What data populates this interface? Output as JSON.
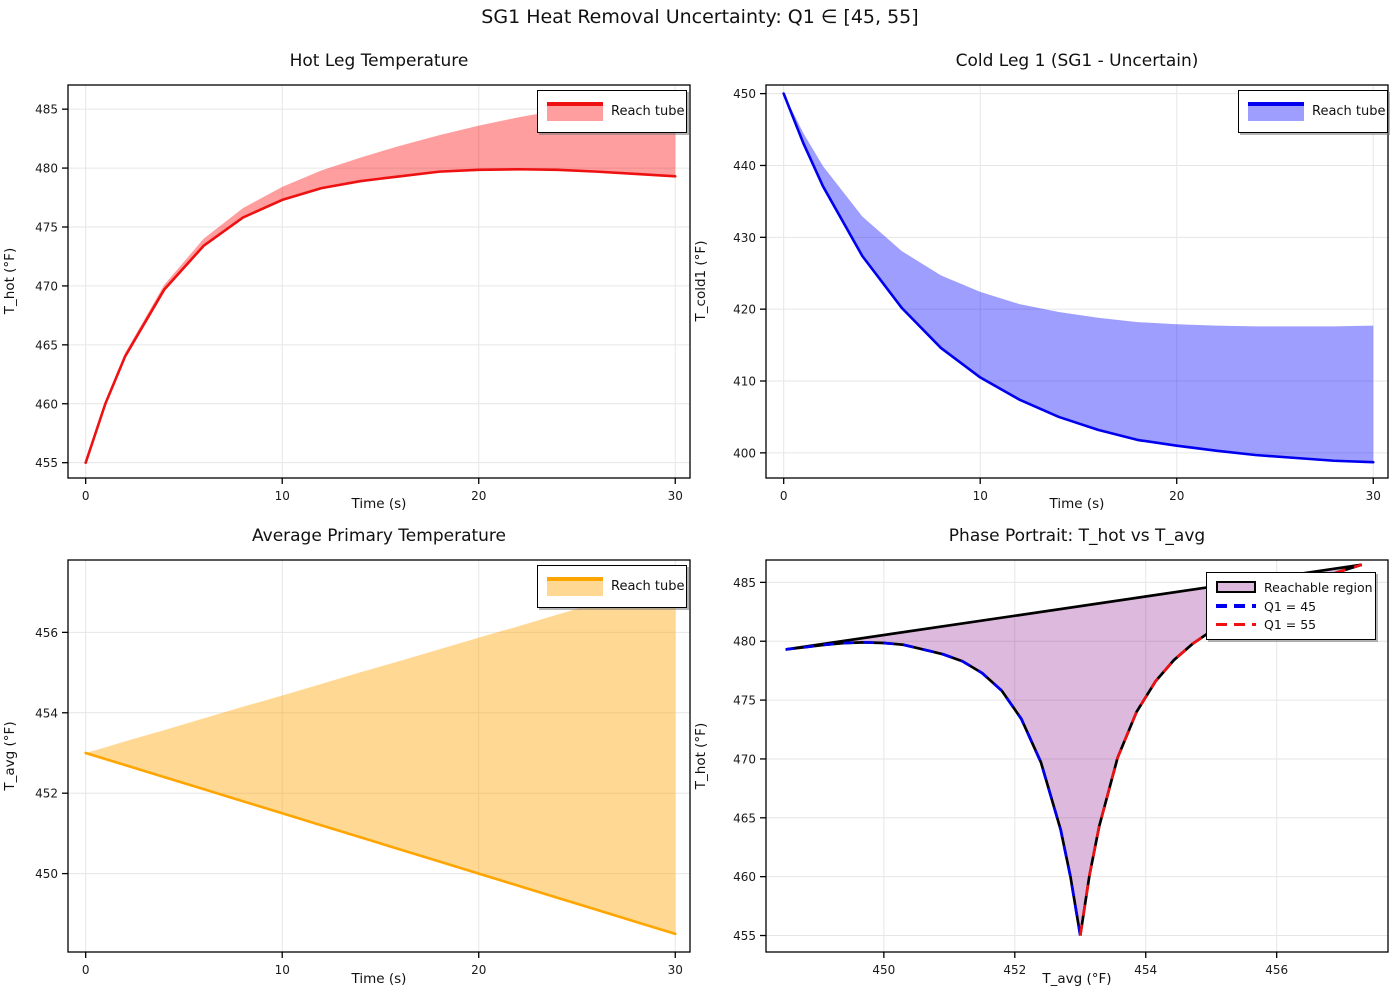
{
  "suptitle": "SG1 Heat Removal Uncertainty: Q1 ∈ [45, 55]",
  "chart_data": [
    {
      "key": "hot_leg",
      "type": "area",
      "title": "Hot Leg Temperature",
      "xlabel": "Time (s)",
      "ylabel": "T_hot (°F)",
      "legend": {
        "label": "Reach tube"
      },
      "line_color": "#ee1111",
      "fill_color": "rgba(255,0,0,0.38)",
      "xlim": [
        -0.9,
        30.75
      ],
      "ylim": [
        453.7,
        487.05
      ],
      "xticks": [
        0,
        10,
        20,
        30
      ],
      "yticks": [
        455,
        460,
        465,
        470,
        475,
        480,
        485
      ],
      "grid": true,
      "x": [
        0,
        1,
        2,
        4,
        6,
        8,
        10,
        12,
        14,
        16,
        18,
        20,
        22,
        24,
        26,
        28,
        30
      ],
      "lower": [
        455.0,
        460.0,
        464.0,
        469.7,
        473.4,
        475.8,
        477.3,
        478.3,
        478.9,
        479.3,
        479.7,
        479.85,
        479.9,
        479.85,
        479.7,
        479.5,
        479.3
      ],
      "upper": [
        455.0,
        460.1,
        464.3,
        470.1,
        474.0,
        476.6,
        478.4,
        479.8,
        480.9,
        481.9,
        482.8,
        483.6,
        484.3,
        484.9,
        485.5,
        486.0,
        486.5
      ]
    },
    {
      "key": "cold_leg1",
      "type": "area",
      "title": "Cold Leg 1 (SG1 - Uncertain)",
      "xlabel": "Time (s)",
      "ylabel": "T_cold1 (°F)",
      "legend": {
        "label": "Reach tube"
      },
      "line_color": "#0000ee",
      "fill_color": "rgba(0,0,255,0.38)",
      "xlim": [
        -0.9,
        30.75
      ],
      "ylim": [
        396.5,
        451.2
      ],
      "xticks": [
        0,
        10,
        20,
        30
      ],
      "yticks": [
        400,
        410,
        420,
        430,
        440,
        450
      ],
      "grid": true,
      "x": [
        0,
        1,
        2,
        4,
        6,
        8,
        10,
        12,
        14,
        16,
        18,
        20,
        22,
        24,
        26,
        28,
        30
      ],
      "lower": [
        450.0,
        443.1,
        437.1,
        427.4,
        420.2,
        414.6,
        410.5,
        407.4,
        405.0,
        403.2,
        401.8,
        401.0,
        400.3,
        399.7,
        399.3,
        398.9,
        398.7
      ],
      "upper": [
        450.0,
        444.5,
        439.9,
        432.9,
        428.1,
        424.7,
        422.4,
        420.7,
        419.6,
        418.8,
        418.2,
        417.9,
        417.7,
        417.6,
        417.6,
        417.6,
        417.7
      ]
    },
    {
      "key": "avg_primary",
      "type": "area",
      "title": "Average Primary Temperature",
      "xlabel": "Time (s)",
      "ylabel": "T_avg (°F)",
      "legend": {
        "label": "Reach tube"
      },
      "line_color": "#ffa500",
      "fill_color": "rgba(255,165,0,0.42)",
      "xlim": [
        -0.9,
        30.75
      ],
      "ylim": [
        448.05,
        457.8
      ],
      "xticks": [
        0,
        10,
        20,
        30
      ],
      "yticks": [
        450,
        452,
        454,
        456
      ],
      "grid": true,
      "x": [
        0,
        1,
        2,
        4,
        6,
        8,
        10,
        12,
        14,
        16,
        18,
        20,
        22,
        24,
        26,
        28,
        30
      ],
      "lower": [
        453.0,
        452.85,
        452.7,
        452.4,
        452.1,
        451.8,
        451.5,
        451.2,
        450.9,
        450.6,
        450.3,
        450.0,
        449.7,
        449.4,
        449.1,
        448.8,
        448.5
      ],
      "upper": [
        453.0,
        453.14,
        453.29,
        453.57,
        453.86,
        454.15,
        454.43,
        454.72,
        455.01,
        455.29,
        455.58,
        455.87,
        456.15,
        456.44,
        456.73,
        457.01,
        457.3
      ]
    },
    {
      "key": "phase_portrait",
      "type": "phase",
      "title": "Phase Portrait: T_hot vs T_avg",
      "xlabel": "T_avg (°F)",
      "ylabel": "T_hot (°F)",
      "legend": {
        "entries": [
          "Reachable region",
          "Q1 = 45",
          "Q1 = 55"
        ]
      },
      "region_fill": "rgba(128,0,128,0.27)",
      "outline_color": "#000000",
      "xlim": [
        448.2,
        457.7
      ],
      "ylim": [
        453.6,
        486.9
      ],
      "xticks": [
        450,
        452,
        454,
        456
      ],
      "yticks": [
        455,
        460,
        465,
        470,
        475,
        480,
        485
      ],
      "grid": true,
      "series": [
        {
          "name": "Q1 = 45",
          "color": "#0000ee",
          "style": "dashed",
          "points": [
            [
              453.0,
              455.0
            ],
            [
              452.85,
              460.0
            ],
            [
              452.7,
              464.0
            ],
            [
              452.4,
              469.7
            ],
            [
              452.1,
              473.4
            ],
            [
              451.8,
              475.8
            ],
            [
              451.5,
              477.3
            ],
            [
              451.2,
              478.3
            ],
            [
              450.9,
              478.9
            ],
            [
              450.6,
              479.3
            ],
            [
              450.3,
              479.7
            ],
            [
              450.0,
              479.85
            ],
            [
              449.7,
              479.9
            ],
            [
              449.4,
              479.85
            ],
            [
              449.1,
              479.7
            ],
            [
              448.8,
              479.5
            ],
            [
              448.5,
              479.3
            ]
          ]
        },
        {
          "name": "Q1 = 55",
          "color": "#ee1111",
          "style": "dashed",
          "points": [
            [
              453.0,
              455.0
            ],
            [
              453.14,
              460.1
            ],
            [
              453.29,
              464.3
            ],
            [
              453.57,
              470.1
            ],
            [
              453.86,
              474.0
            ],
            [
              454.15,
              476.6
            ],
            [
              454.43,
              478.4
            ],
            [
              454.72,
              479.8
            ],
            [
              455.01,
              480.9
            ],
            [
              455.29,
              481.9
            ],
            [
              455.58,
              482.8
            ],
            [
              455.87,
              483.6
            ],
            [
              456.15,
              484.3
            ],
            [
              456.44,
              484.9
            ],
            [
              456.73,
              485.5
            ],
            [
              457.01,
              486.0
            ],
            [
              457.3,
              486.5
            ]
          ]
        }
      ],
      "top_edge": [
        [
          448.5,
          479.3
        ],
        [
          457.3,
          486.5
        ]
      ]
    }
  ]
}
